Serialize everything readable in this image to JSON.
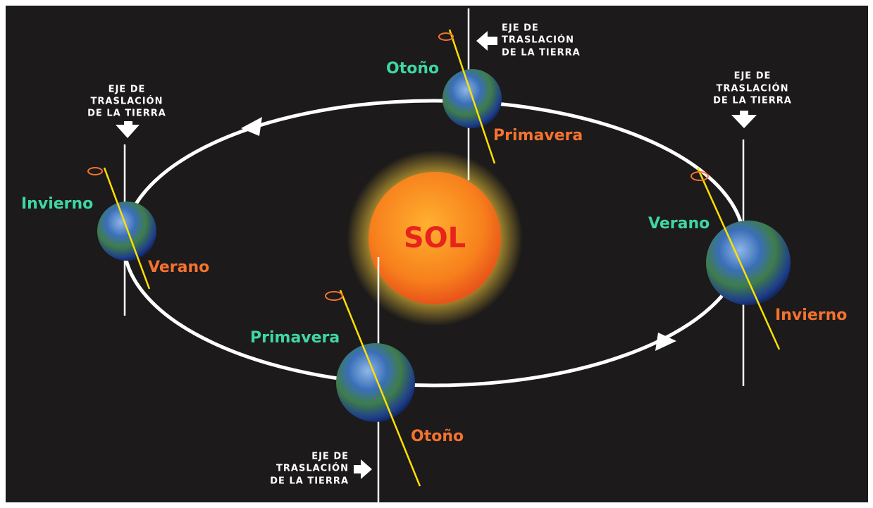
{
  "sun": {
    "label": "SOL"
  },
  "positions": [
    {
      "north_label": "Otoño",
      "south_label": "Primavera",
      "axis_label": [
        "EJE DE",
        "TRASLACIÓN",
        "DE LA TIERRA"
      ]
    },
    {
      "north_label": "Invierno",
      "south_label": "Verano",
      "axis_label": [
        "EJE DE",
        "TRASLACIÓN",
        "DE LA TIERRA"
      ]
    },
    {
      "north_label": "Primavera",
      "south_label": "Otoño",
      "axis_label": [
        "EJE DE",
        "TRASLACIÓN",
        "DE LA TIERRA"
      ]
    },
    {
      "north_label": "Verano",
      "south_label": "Invierno",
      "axis_label": [
        "EJE DE",
        "TRASLACIÓN",
        "DE LA TIERRA"
      ]
    }
  ]
}
